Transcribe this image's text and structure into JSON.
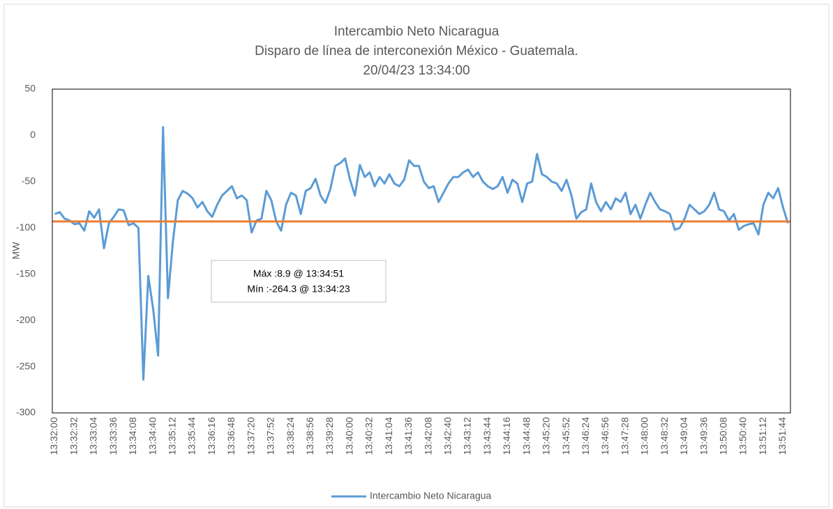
{
  "chart_data": {
    "type": "line",
    "title": [
      "Intercambio Neto Nicaragua",
      "Disparo de línea de interconexión México - Guatemala.",
      "20/04/23 13:34:00"
    ],
    "y_label": "MW",
    "categories": [
      "13:32:00",
      null,
      null,
      null,
      "13:32:32",
      null,
      null,
      null,
      "13:33:04",
      null,
      null,
      null,
      "13:33:36",
      null,
      null,
      null,
      "13:34:08",
      null,
      null,
      null,
      "13:34:40",
      null,
      null,
      null,
      "13:35:12",
      null,
      null,
      null,
      "13:35:44",
      null,
      null,
      null,
      "13:36:16",
      null,
      null,
      null,
      "13:36:48",
      null,
      null,
      null,
      "13:37:20",
      null,
      null,
      null,
      "13:37:52",
      null,
      null,
      null,
      "13:38:24",
      null,
      null,
      null,
      "13:38:56",
      null,
      null,
      null,
      "13:39:28",
      null,
      null,
      null,
      "13:40:00",
      null,
      null,
      null,
      "13:40:32",
      null,
      null,
      null,
      "13:41:04",
      null,
      null,
      null,
      "13:41:36",
      null,
      null,
      null,
      "13:42:08",
      null,
      null,
      null,
      "13:42:40",
      null,
      null,
      null,
      "13:43:12",
      null,
      null,
      null,
      "13:43:44",
      null,
      null,
      null,
      "13:44:16",
      null,
      null,
      null,
      "13:44:48",
      null,
      null,
      null,
      "13:45:20",
      null,
      null,
      null,
      "13:45:52",
      null,
      null,
      null,
      "13:46:24",
      null,
      null,
      null,
      "13:46:56",
      null,
      null,
      null,
      "13:47:28",
      null,
      null,
      null,
      "13:48:00",
      null,
      null,
      null,
      "13:48:32",
      null,
      null,
      null,
      "13:49:04",
      null,
      null,
      null,
      "13:49:36",
      null,
      null,
      null,
      "13:50:08",
      null,
      null,
      null,
      "13:50:40",
      null,
      null,
      null,
      "13:51:12",
      null,
      null,
      null,
      "13:51:44",
      null
    ],
    "series": [
      {
        "name": "Intercambio Neto Nicaragua",
        "color": "#5b9bd5",
        "values": [
          -85,
          -83,
          -90,
          -92,
          -96,
          -95,
          -103,
          -82,
          -89,
          -80,
          -122,
          -95,
          -88,
          -80,
          -81,
          -97,
          -95,
          -100,
          -264,
          -152,
          -188,
          -238,
          8.9,
          -176,
          -115,
          -70,
          -60,
          -63,
          -68,
          -78,
          -72,
          -82,
          -88,
          -75,
          -65,
          -60,
          -55,
          -68,
          -65,
          -70,
          -105,
          -92,
          -90,
          -60,
          -70,
          -93,
          -103,
          -75,
          -62,
          -65,
          -85,
          -60,
          -57,
          -47,
          -65,
          -73,
          -58,
          -33,
          -30,
          -25,
          -48,
          -65,
          -32,
          -45,
          -40,
          -55,
          -45,
          -52,
          -42,
          -52,
          -55,
          -48,
          -27,
          -33,
          -33,
          -50,
          -57,
          -55,
          -72,
          -62,
          -52,
          -45,
          -45,
          -40,
          -37,
          -45,
          -40,
          -50,
          -55,
          -58,
          -55,
          -45,
          -62,
          -48,
          -52,
          -72,
          -52,
          -50,
          -20,
          -42,
          -45,
          -50,
          -52,
          -60,
          -48,
          -65,
          -90,
          -83,
          -80,
          -52,
          -72,
          -82,
          -72,
          -80,
          -68,
          -72,
          -62,
          -85,
          -75,
          -90,
          -75,
          -62,
          -72,
          -80,
          -82,
          -85,
          -102,
          -100,
          -90,
          -75,
          -80,
          -85,
          -82,
          -75,
          -62,
          -80,
          -82,
          -92,
          -85,
          -102,
          -98,
          -96,
          -95,
          -107,
          -75,
          -62,
          -68,
          -57,
          -78,
          -95
        ]
      }
    ],
    "reference_line": {
      "value": -93,
      "color": "#ed7d31"
    },
    "annotations": [
      "Máx :8.9 @ 13:34:51",
      "Mín :-264.3 @ 13:34:23"
    ],
    "ylim": [
      -300,
      50
    ],
    "yticks": [
      50,
      0,
      -50,
      -100,
      -150,
      -200,
      -250,
      -300
    ],
    "grid": false,
    "legend": "bottom"
  }
}
